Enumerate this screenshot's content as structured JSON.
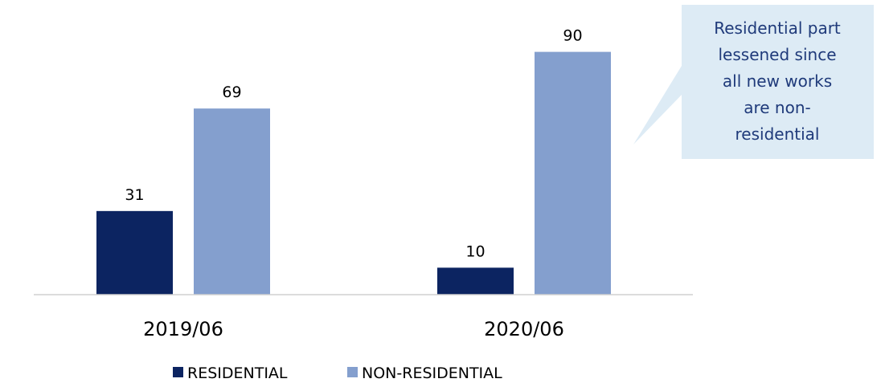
{
  "chart_data": {
    "type": "bar",
    "title": "",
    "xlabel": "",
    "ylabel": "",
    "categories": [
      "2019/06",
      "2020/06"
    ],
    "series": [
      {
        "name": "RESIDENTIAL",
        "values": [
          31,
          10
        ],
        "color": "#0c2461"
      },
      {
        "name": "NON-RESIDENTIAL",
        "values": [
          69,
          90
        ],
        "color": "#849fce"
      }
    ],
    "ylim": [
      0,
      100
    ],
    "grid": false,
    "legend": "bottom",
    "annotation": {
      "lines": [
        "Residential part",
        "lessened since",
        "all new works",
        "are non-",
        "residential"
      ],
      "background": "#ddebf5",
      "text_color": "#1f3a7a"
    }
  }
}
